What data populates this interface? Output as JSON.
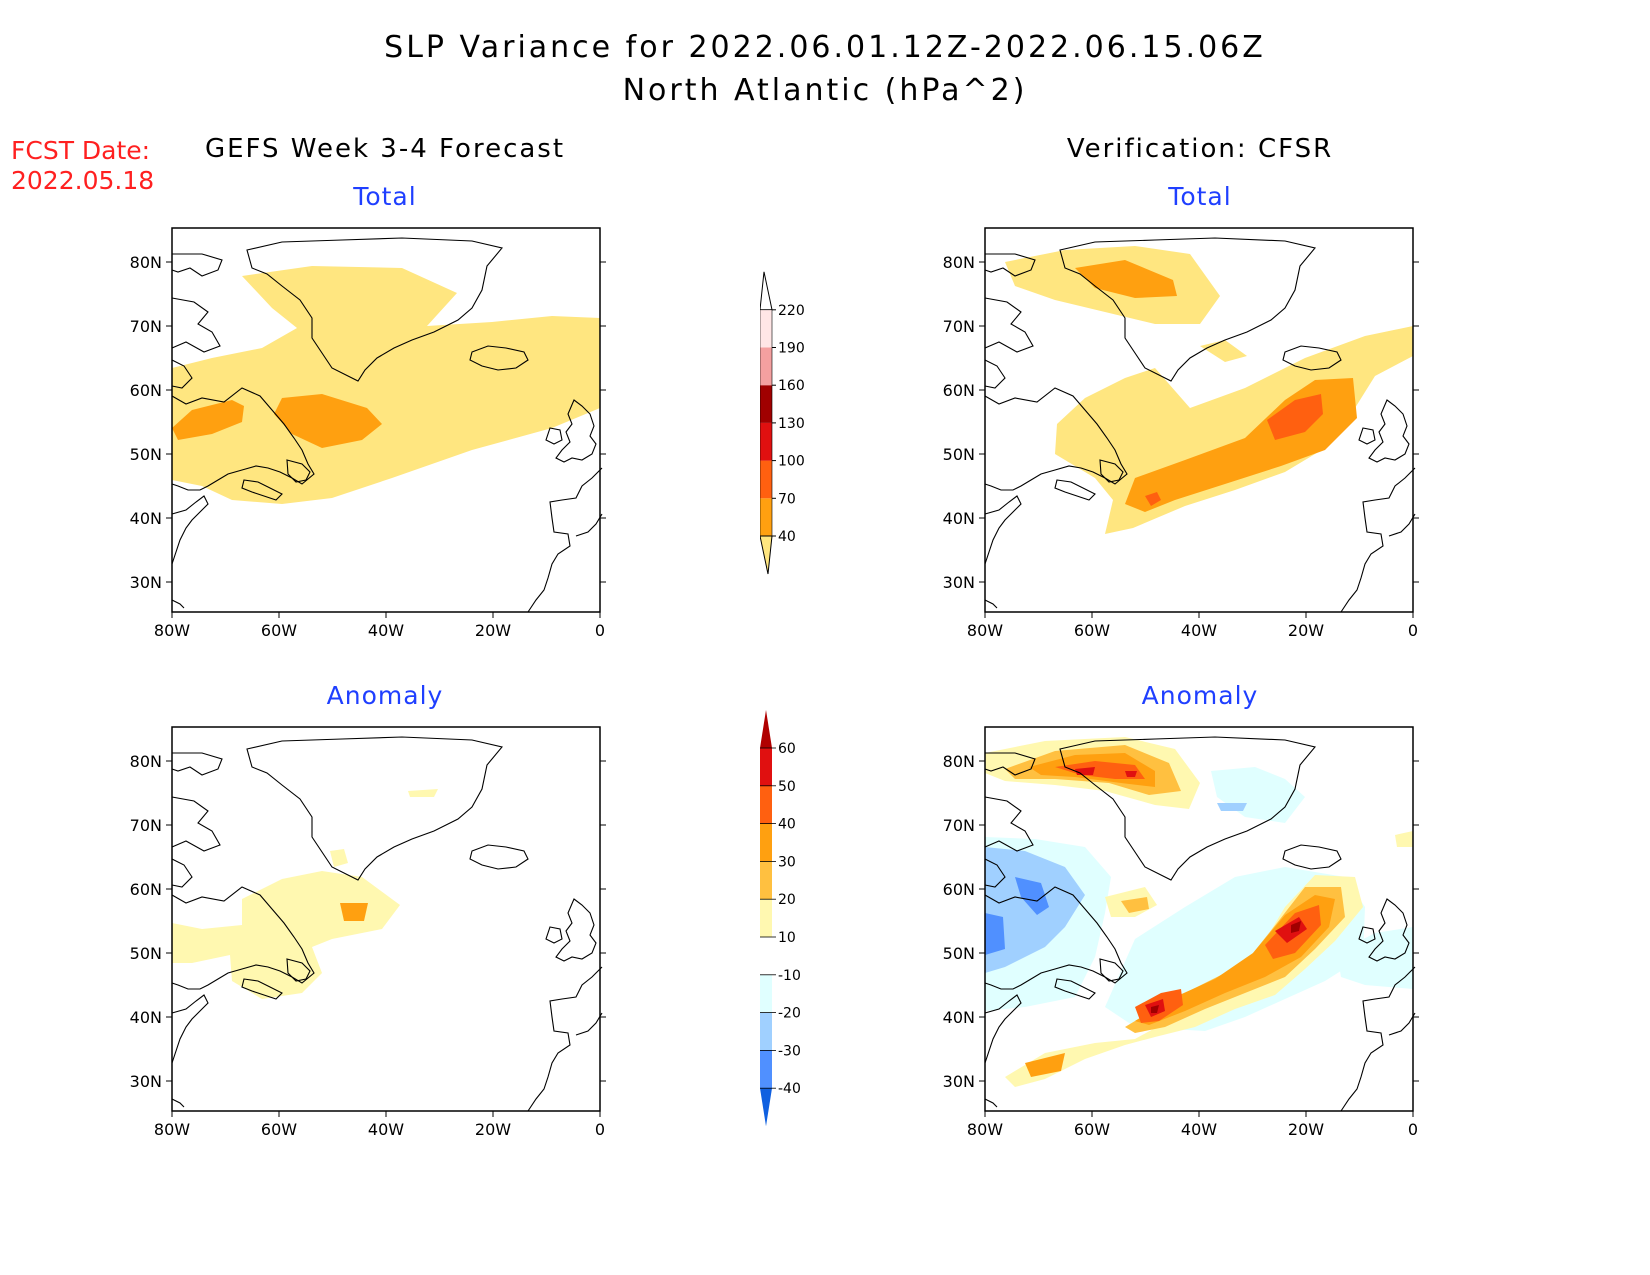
{
  "title_line1": "SLP Variance for 2022.06.01.12Z-2022.06.15.06Z",
  "title_line2": "North Atlantic (hPa^2)",
  "fcst_label": "FCST Date:",
  "fcst_date": "2022.05.18",
  "left_header": "GEFS Week 3-4 Forecast",
  "right_header": "Verification: CFSR",
  "total_label": "Total",
  "anomaly_label": "Anomaly",
  "lat_ticks": [
    "80N",
    "70N",
    "60N",
    "50N",
    "40N",
    "30N"
  ],
  "lon_ticks": [
    "80W",
    "60W",
    "40W",
    "20W",
    "0"
  ],
  "total_scale": {
    "levels": [
      "40",
      "70",
      "100",
      "130",
      "160",
      "190",
      "220"
    ],
    "colors": [
      "#ffe680",
      "#ffa010",
      "#ff6010",
      "#e01010",
      "#a00000",
      "#f4a0a0",
      "#ffe6e6",
      "#ffffff"
    ]
  },
  "anomaly_scale": {
    "levels": [
      "60",
      "50",
      "40",
      "30",
      "20",
      "10",
      "-10",
      "-20",
      "-30",
      "-40"
    ],
    "colors": [
      "#b00000",
      "#e01010",
      "#ff6010",
      "#ffa010",
      "#ffc040",
      "#ffff b0",
      "#ffffff",
      "#e0ffff",
      "#a0d0ff",
      "#5090ff",
      "#1060e0"
    ]
  },
  "palette": {
    "yellow": "#ffe680",
    "light_yellow": "#fff8b0",
    "light_orange": "#ffc040",
    "orange": "#ffa010",
    "dark_orange": "#ff6010",
    "red": "#e01010",
    "dark_red": "#a00000",
    "cyan": "#e0ffff",
    "light_blue": "#a0d0ff",
    "blue": "#5090ff",
    "fcst_red": "#ff2020",
    "subtitle_blue": "#1f3fff"
  }
}
